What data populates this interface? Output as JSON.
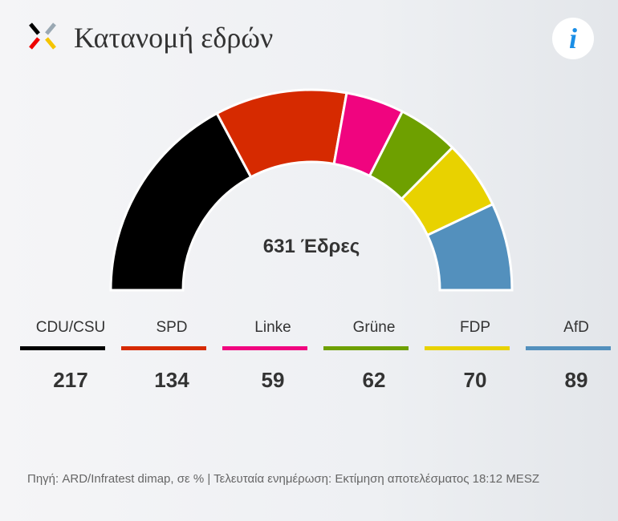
{
  "header": {
    "title": "Κατανομή εδρών",
    "info_label": "i"
  },
  "chart_data": {
    "type": "pie",
    "subtype": "semicircle-donut",
    "title": "Κατανομή εδρών",
    "center_label": "631 Έδρες",
    "total": 631,
    "categories": [
      "CDU/CSU",
      "SPD",
      "Linke",
      "Grüne",
      "FDP",
      "AfD"
    ],
    "values": [
      217,
      134,
      59,
      62,
      70,
      89
    ],
    "colors": [
      "#000000",
      "#d62a00",
      "#f0047f",
      "#6ea000",
      "#e8d200",
      "#5390bd"
    ]
  },
  "footer": {
    "source": "Πηγή: ARD/Infratest dimap, σε % | Τελευταία ενημέρωση: Εκτίμηση αποτελέσματος 18:12 MESZ"
  }
}
